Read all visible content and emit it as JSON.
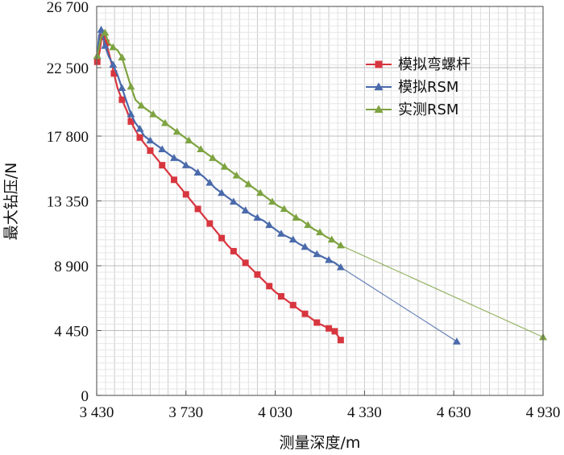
{
  "chart_data": {
    "type": "line",
    "xlabel": "测量深度/m",
    "ylabel": "最大钻压/N",
    "xlim": [
      3430,
      4930
    ],
    "ylim": [
      0,
      26700
    ],
    "x_ticks": [
      3430,
      3730,
      4030,
      4330,
      4630,
      4930
    ],
    "x_tick_labels": [
      "3 430",
      "3 730",
      "4 030",
      "4 330",
      "4 630",
      "4 930"
    ],
    "y_ticks": [
      0,
      4450,
      8900,
      13350,
      17800,
      22500,
      26700
    ],
    "y_tick_labels": [
      "0",
      "4 450",
      "8 900",
      "13 350",
      "17 800",
      "22 500",
      "26 700"
    ],
    "grid": true,
    "legend_position": "top-right",
    "series": [
      {
        "name": "模拟弯螺杆",
        "color": "#d8363f",
        "marker": "square",
        "x": [
          3432,
          3440,
          3447,
          3453,
          3462,
          3475,
          3488,
          3500,
          3515,
          3530,
          3545,
          3560,
          3575,
          3590,
          3610,
          3630,
          3650,
          3670,
          3690,
          3710,
          3730,
          3750,
          3770,
          3790,
          3810,
          3830,
          3850,
          3870,
          3890,
          3910,
          3930,
          3950,
          3970,
          3990,
          4010,
          4030,
          4050,
          4070,
          4090,
          4110,
          4130,
          4150,
          4170,
          4190,
          4210,
          4230,
          4250
        ],
        "y": [
          22900,
          23600,
          24600,
          24900,
          24200,
          23200,
          22100,
          21100,
          20300,
          19600,
          18800,
          18200,
          17700,
          17300,
          16800,
          16300,
          15800,
          15300,
          14800,
          14300,
          13800,
          13300,
          12800,
          12300,
          11800,
          11300,
          10800,
          10300,
          9900,
          9500,
          9100,
          8700,
          8300,
          7900,
          7500,
          7100,
          6800,
          6500,
          6200,
          5900,
          5600,
          5300,
          5000,
          4800,
          4600,
          4400,
          3800
        ]
      },
      {
        "name": "模拟RSM",
        "color": "#4a6aab",
        "marker": "triangle",
        "x": [
          3432,
          3438,
          3445,
          3452,
          3458,
          3470,
          3485,
          3500,
          3515,
          3530,
          3545,
          3560,
          3575,
          3590,
          3610,
          3630,
          3650,
          3670,
          3690,
          3710,
          3730,
          3750,
          3770,
          3790,
          3810,
          3830,
          3850,
          3870,
          3890,
          3910,
          3930,
          3950,
          3970,
          3990,
          4010,
          4030,
          4050,
          4070,
          4090,
          4110,
          4130,
          4150,
          4170,
          4190,
          4210,
          4230,
          4250,
          4640
        ],
        "y": [
          23300,
          24700,
          25100,
          24600,
          24000,
          23300,
          22700,
          22000,
          21100,
          20200,
          19300,
          18700,
          18300,
          17800,
          17500,
          17200,
          16900,
          16600,
          16300,
          16100,
          15800,
          15600,
          15300,
          15000,
          14600,
          14200,
          13900,
          13600,
          13300,
          13000,
          12700,
          12400,
          12200,
          12000,
          11700,
          11400,
          11100,
          10900,
          10700,
          10400,
          10200,
          9900,
          9700,
          9500,
          9300,
          9100,
          8800,
          3700
        ]
      },
      {
        "name": "实测RSM",
        "color": "#7ea341",
        "marker": "triangle",
        "x": [
          3432,
          3445,
          3458,
          3470,
          3485,
          3500,
          3515,
          3530,
          3545,
          3560,
          3580,
          3600,
          3620,
          3640,
          3660,
          3680,
          3700,
          3720,
          3740,
          3760,
          3780,
          3800,
          3820,
          3840,
          3860,
          3880,
          3900,
          3920,
          3940,
          3960,
          3980,
          4000,
          4020,
          4040,
          4060,
          4080,
          4100,
          4120,
          4140,
          4160,
          4180,
          4200,
          4220,
          4240,
          4250,
          4930
        ],
        "y": [
          23300,
          24600,
          24900,
          24200,
          23900,
          23700,
          23200,
          22200,
          21200,
          20300,
          19900,
          19600,
          19300,
          19000,
          18700,
          18400,
          18100,
          17800,
          17500,
          17200,
          16900,
          16600,
          16300,
          16000,
          15700,
          15400,
          15100,
          14800,
          14500,
          14200,
          13900,
          13600,
          13300,
          13000,
          12800,
          12500,
          12200,
          12000,
          11700,
          11400,
          11200,
          10900,
          10700,
          10400,
          10300,
          4000
        ]
      }
    ]
  }
}
